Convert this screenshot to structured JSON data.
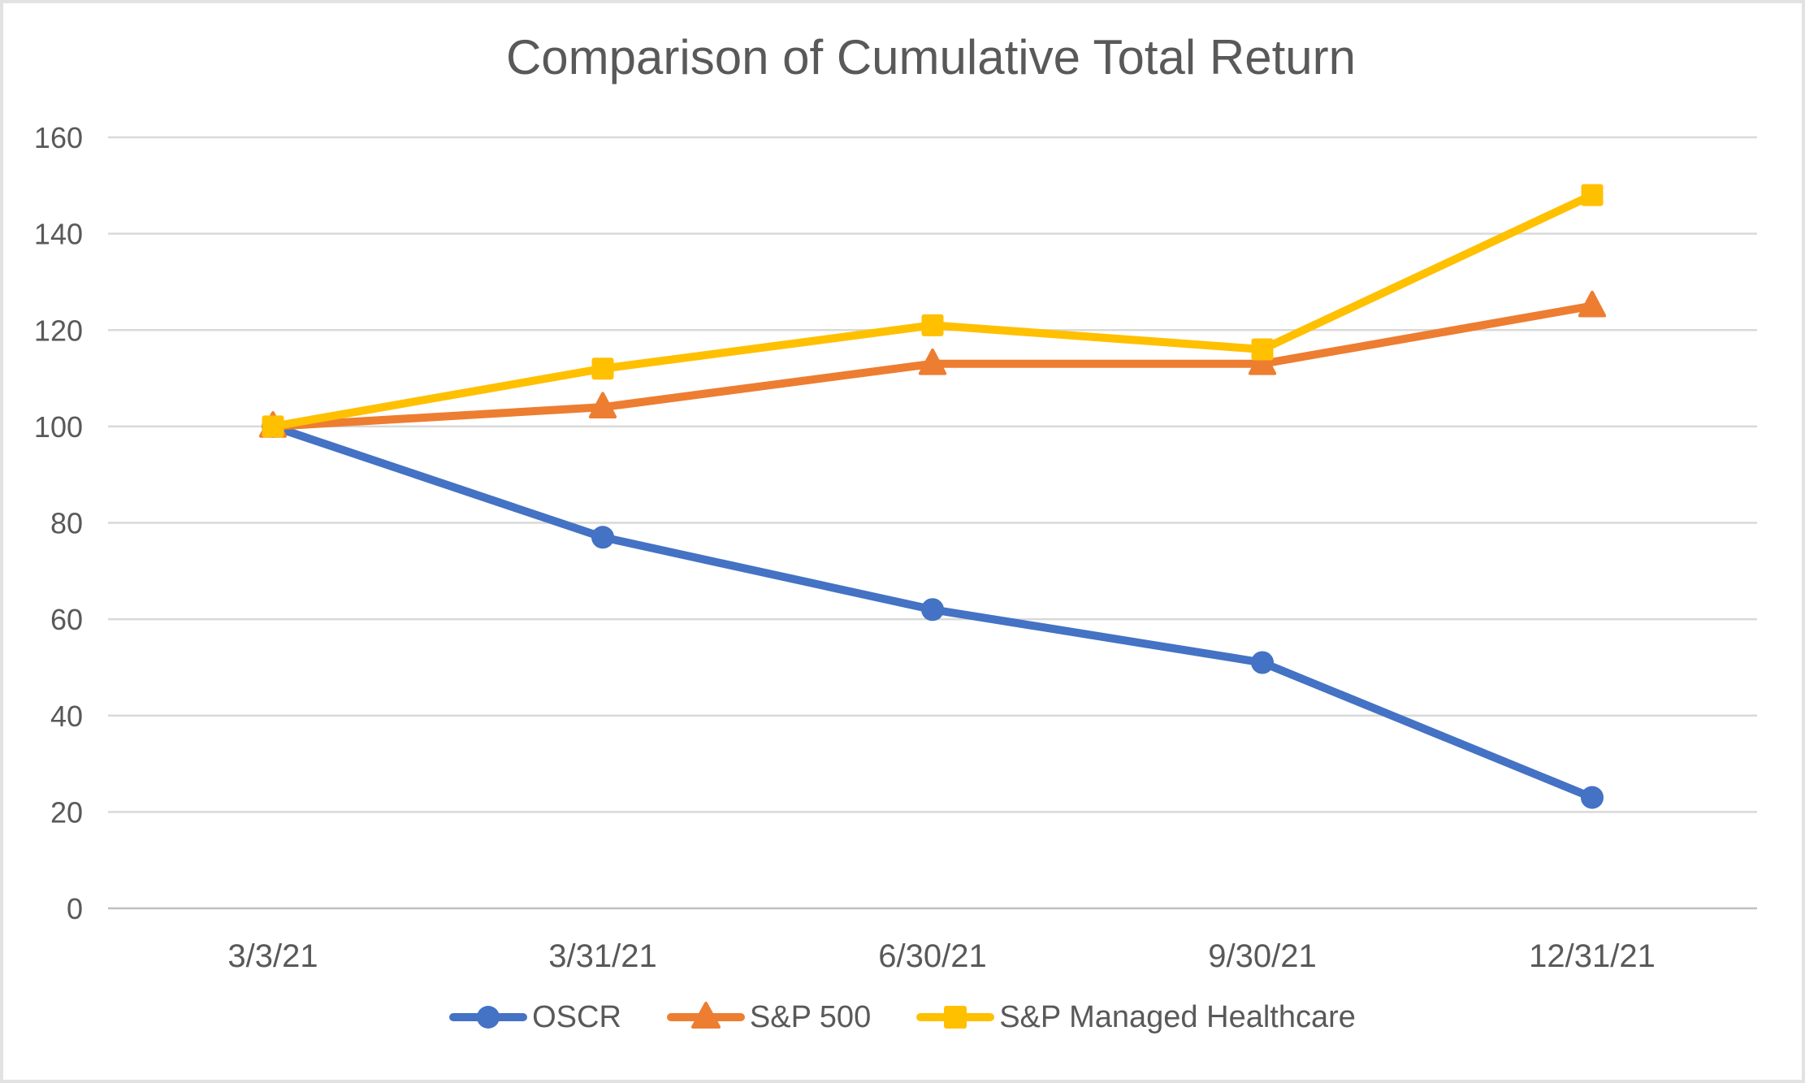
{
  "chart_data": {
    "type": "line",
    "title": "Comparison of Cumulative Total Return",
    "categories": [
      "3/3/21",
      "3/31/21",
      "6/30/21",
      "9/30/21",
      "12/31/21"
    ],
    "series": [
      {
        "name": "OSCR",
        "color": "#4472C4",
        "marker": "circle",
        "values": [
          100,
          77,
          62,
          51,
          23
        ]
      },
      {
        "name": "S&P 500",
        "color": "#ED7D31",
        "marker": "triangle",
        "values": [
          100,
          104,
          113,
          113,
          125
        ]
      },
      {
        "name": "S&P Managed Healthcare",
        "color": "#FFC000",
        "marker": "square",
        "values": [
          100,
          112,
          121,
          116,
          148
        ]
      }
    ],
    "ylim": [
      0,
      160
    ],
    "ytick_step": 20,
    "yticks": [
      0,
      20,
      40,
      60,
      80,
      100,
      120,
      140,
      160
    ],
    "grid": true,
    "legend_position": "bottom",
    "title_color": "#595959",
    "axis_text_color": "#595959",
    "gridline_color": "#D9D9D9",
    "axis_line_color": "#BFBFBF",
    "border_color": "#E2E2E2",
    "background": "#FFFFFF"
  }
}
